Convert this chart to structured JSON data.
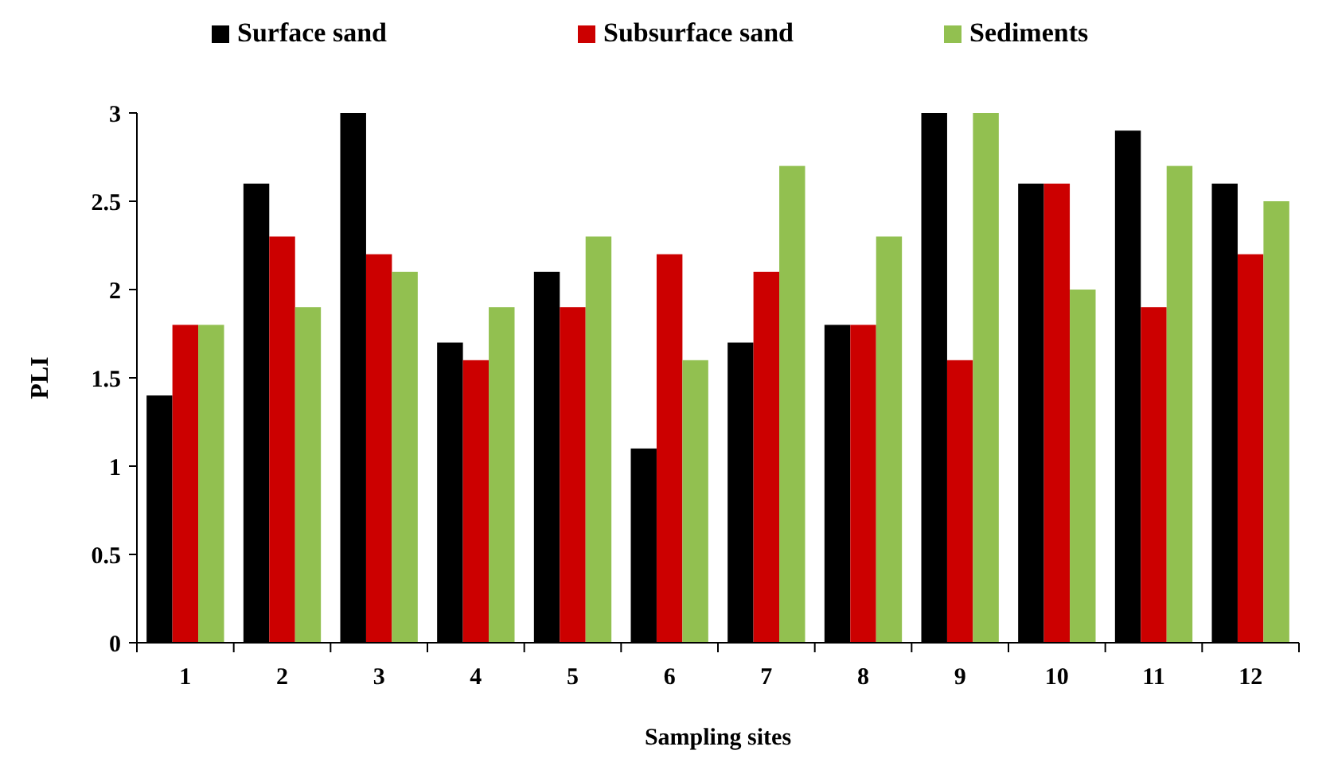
{
  "chart_data": {
    "type": "bar",
    "xlabel": "Sampling sites",
    "ylabel": "PLI",
    "categories": [
      "1",
      "2",
      "3",
      "4",
      "5",
      "6",
      "7",
      "8",
      "9",
      "10",
      "11",
      "12"
    ],
    "series": [
      {
        "name": "Surface sand",
        "color": "#000000",
        "values": [
          1.4,
          2.6,
          3.0,
          1.7,
          2.1,
          1.1,
          1.7,
          1.8,
          3.0,
          2.6,
          2.9,
          2.6
        ]
      },
      {
        "name": "Subsurface sand",
        "color": "#cc0000",
        "values": [
          1.8,
          2.3,
          2.2,
          1.6,
          1.9,
          2.2,
          2.1,
          1.8,
          1.6,
          2.6,
          1.9,
          2.2
        ]
      },
      {
        "name": "Sediments",
        "color": "#92c050",
        "values": [
          1.8,
          1.9,
          2.1,
          1.9,
          2.3,
          1.6,
          2.7,
          2.3,
          3.0,
          2.0,
          2.7,
          2.5
        ]
      }
    ],
    "ylim": [
      0,
      3
    ],
    "yticks": [
      0,
      0.5,
      1,
      1.5,
      2,
      2.5,
      3
    ],
    "grid": false,
    "legend": "top"
  }
}
